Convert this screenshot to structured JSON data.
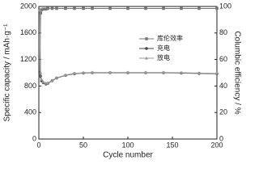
{
  "chart_data": {
    "type": "line",
    "x_label": "Cycle number",
    "y_label": "Specific capacity / mAh·g⁻¹",
    "y2_label": "Columbic efficiency / %",
    "xlim": [
      0,
      200
    ],
    "xticks": [
      0,
      50,
      100,
      150,
      200
    ],
    "ylim": [
      0,
      2000
    ],
    "yticks": [
      0,
      400,
      800,
      1200,
      1600,
      2000
    ],
    "y2lim": [
      0,
      100
    ],
    "y2ticks": [
      0,
      20,
      40,
      60,
      80,
      100
    ],
    "grid": false,
    "legend": "center right",
    "x": [
      1,
      2,
      3,
      5,
      8,
      10,
      15,
      20,
      30,
      40,
      50,
      60,
      80,
      100,
      120,
      140,
      160,
      180,
      200
    ],
    "series": [
      {
        "name": "库伦效率",
        "color": "#777777",
        "marker": "square",
        "axis": "y2",
        "values": [
          47,
          95,
          97.5,
          98,
          98,
          98.5,
          98.5,
          98.5,
          98.5,
          98.5,
          98.5,
          98.5,
          98.5,
          98.5,
          98.5,
          98.5,
          98.5,
          98.5,
          98.5
        ]
      },
      {
        "name": "充电",
        "color": "#444444",
        "marker": "circle",
        "values": [
          1000,
          950,
          880,
          850,
          830,
          840,
          880,
          920,
          960,
          985,
          995,
          1000,
          1000,
          1000,
          1000,
          1000,
          995,
          990,
          985
        ]
      },
      {
        "name": "放电",
        "color": "#999999",
        "marker": "triangle",
        "values": [
          1950,
          1000,
          900,
          860,
          840,
          845,
          885,
          925,
          965,
          990,
          1000,
          1005,
          1005,
          1005,
          1005,
          1005,
          1000,
          995,
          990
        ]
      }
    ]
  }
}
